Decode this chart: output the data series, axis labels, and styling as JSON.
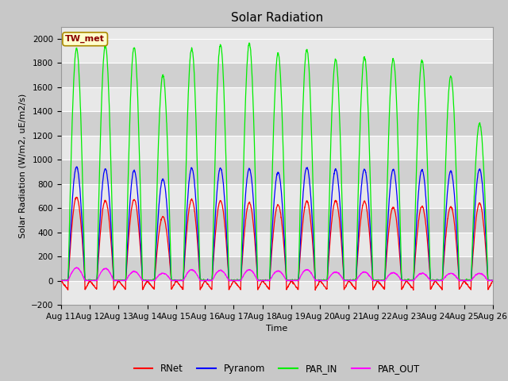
{
  "title": "Solar Radiation",
  "ylabel": "Solar Radiation (W/m2, uE/m2/s)",
  "xlabel": "Time",
  "station_label": "TW_met",
  "ylim": [
    -200,
    2100
  ],
  "yticks": [
    -200,
    0,
    200,
    400,
    600,
    800,
    1000,
    1200,
    1400,
    1600,
    1800,
    2000
  ],
  "start_day": 11,
  "end_day": 26,
  "colors": {
    "RNet": "#ff0000",
    "Pyranom": "#0000ff",
    "PAR_IN": "#00ee00",
    "PAR_OUT": "#ff00ff"
  },
  "legend_labels": [
    "RNet",
    "Pyranom",
    "PAR_IN",
    "PAR_OUT"
  ],
  "bg_color": "#c8c8c8",
  "plot_bg_light": "#e8e8e8",
  "plot_bg_dark": "#d0d0d0",
  "grid_color": "#ffffff",
  "title_fontsize": 11,
  "label_fontsize": 8,
  "tick_fontsize": 7.5,
  "par_in_peaks": [
    1920,
    1940,
    1930,
    1700,
    1920,
    1950,
    1960,
    1880,
    1910,
    1830,
    1850,
    1830,
    1820,
    1690,
    1300
  ],
  "pyranom_peaks": [
    940,
    925,
    910,
    840,
    930,
    930,
    925,
    895,
    935,
    920,
    920,
    920,
    915,
    905,
    920
  ],
  "rnet_peaks": [
    690,
    660,
    670,
    530,
    670,
    660,
    645,
    625,
    655,
    660,
    655,
    605,
    615,
    610,
    640
  ],
  "par_out_peaks": [
    105,
    100,
    75,
    60,
    90,
    85,
    90,
    80,
    90,
    70,
    70,
    65,
    60,
    60,
    60
  ],
  "rnet_night": -75
}
